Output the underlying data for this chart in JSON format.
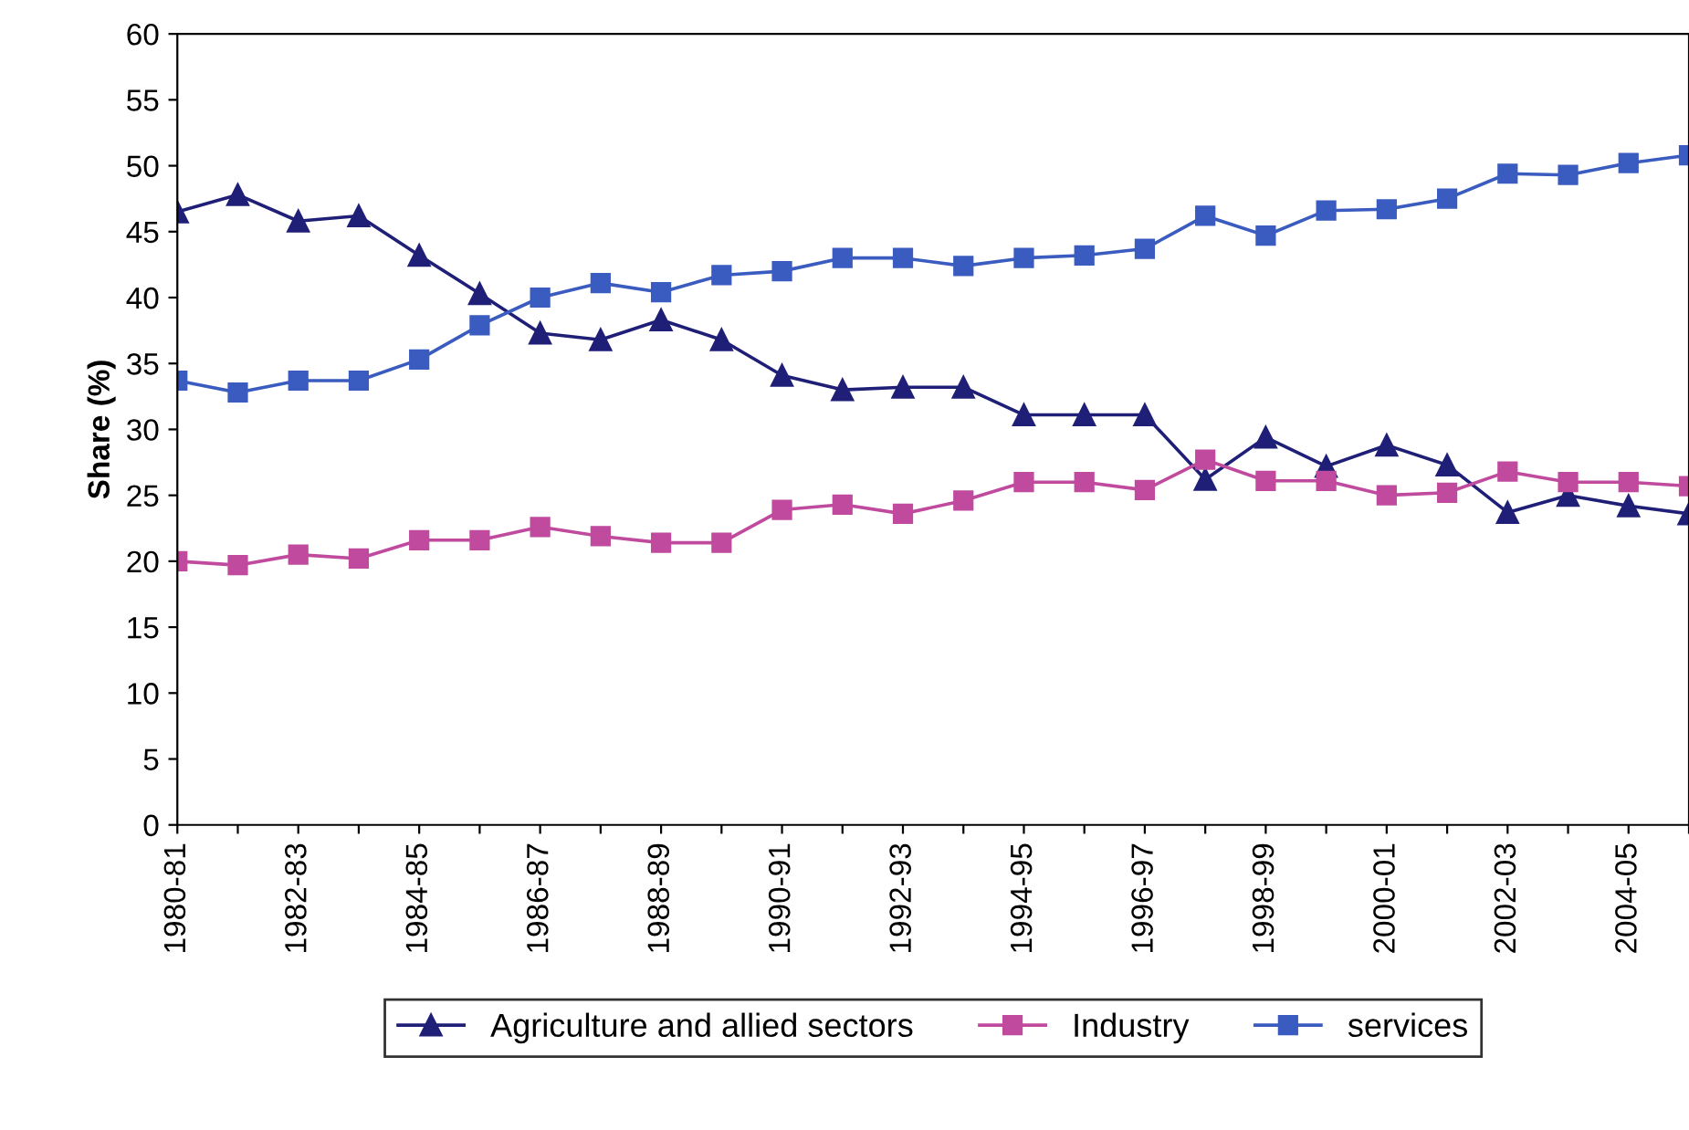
{
  "chart_data": {
    "type": "line",
    "ylabel": "Share (%)",
    "categories": [
      "1980-81",
      null,
      "1982-83",
      null,
      "1984-85",
      null,
      "1986-87",
      null,
      "1988-89",
      null,
      "1990-91",
      null,
      "1992-93",
      null,
      "1994-95",
      null,
      "1996-97",
      null,
      "1998-99",
      null,
      "2000-01",
      null,
      "2002-03",
      null,
      "2004-05",
      null
    ],
    "series": [
      {
        "name": "Agriculture and allied sectors",
        "color": "#1f1f78",
        "marker": "triangle",
        "values": [
          46.5,
          47.8,
          45.8,
          46.2,
          43.2,
          40.3,
          37.3,
          36.8,
          38.3,
          36.8,
          34.1,
          33.0,
          33.2,
          33.2,
          31.1,
          31.1,
          31.1,
          26.2,
          29.4,
          27.2,
          28.8,
          27.3,
          23.7,
          25.0,
          24.2,
          23.6
        ]
      },
      {
        "name": "Industry",
        "color": "#c04a9e",
        "marker": "square",
        "values": [
          20.0,
          19.7,
          20.5,
          20.2,
          21.6,
          21.6,
          22.6,
          21.9,
          21.4,
          21.4,
          23.9,
          24.3,
          23.6,
          24.6,
          26.0,
          26.0,
          25.4,
          27.7,
          26.1,
          26.1,
          25.0,
          25.2,
          26.8,
          26.0,
          26.0,
          25.7
        ]
      },
      {
        "name": "services",
        "color": "#3a5bbf",
        "marker": "square",
        "values": [
          33.7,
          32.8,
          33.7,
          33.7,
          35.3,
          37.9,
          40.0,
          41.1,
          40.4,
          41.7,
          42.0,
          43.0,
          43.0,
          42.4,
          43.0,
          43.2,
          43.7,
          46.2,
          44.7,
          46.6,
          46.7,
          47.5,
          49.4,
          49.3,
          50.2,
          50.8
        ]
      }
    ],
    "ylim": [
      0,
      60
    ],
    "yticks": [
      0,
      5,
      10,
      15,
      20,
      25,
      30,
      35,
      40,
      45,
      50,
      55,
      60
    ],
    "grid": false,
    "legend": "bottom"
  }
}
